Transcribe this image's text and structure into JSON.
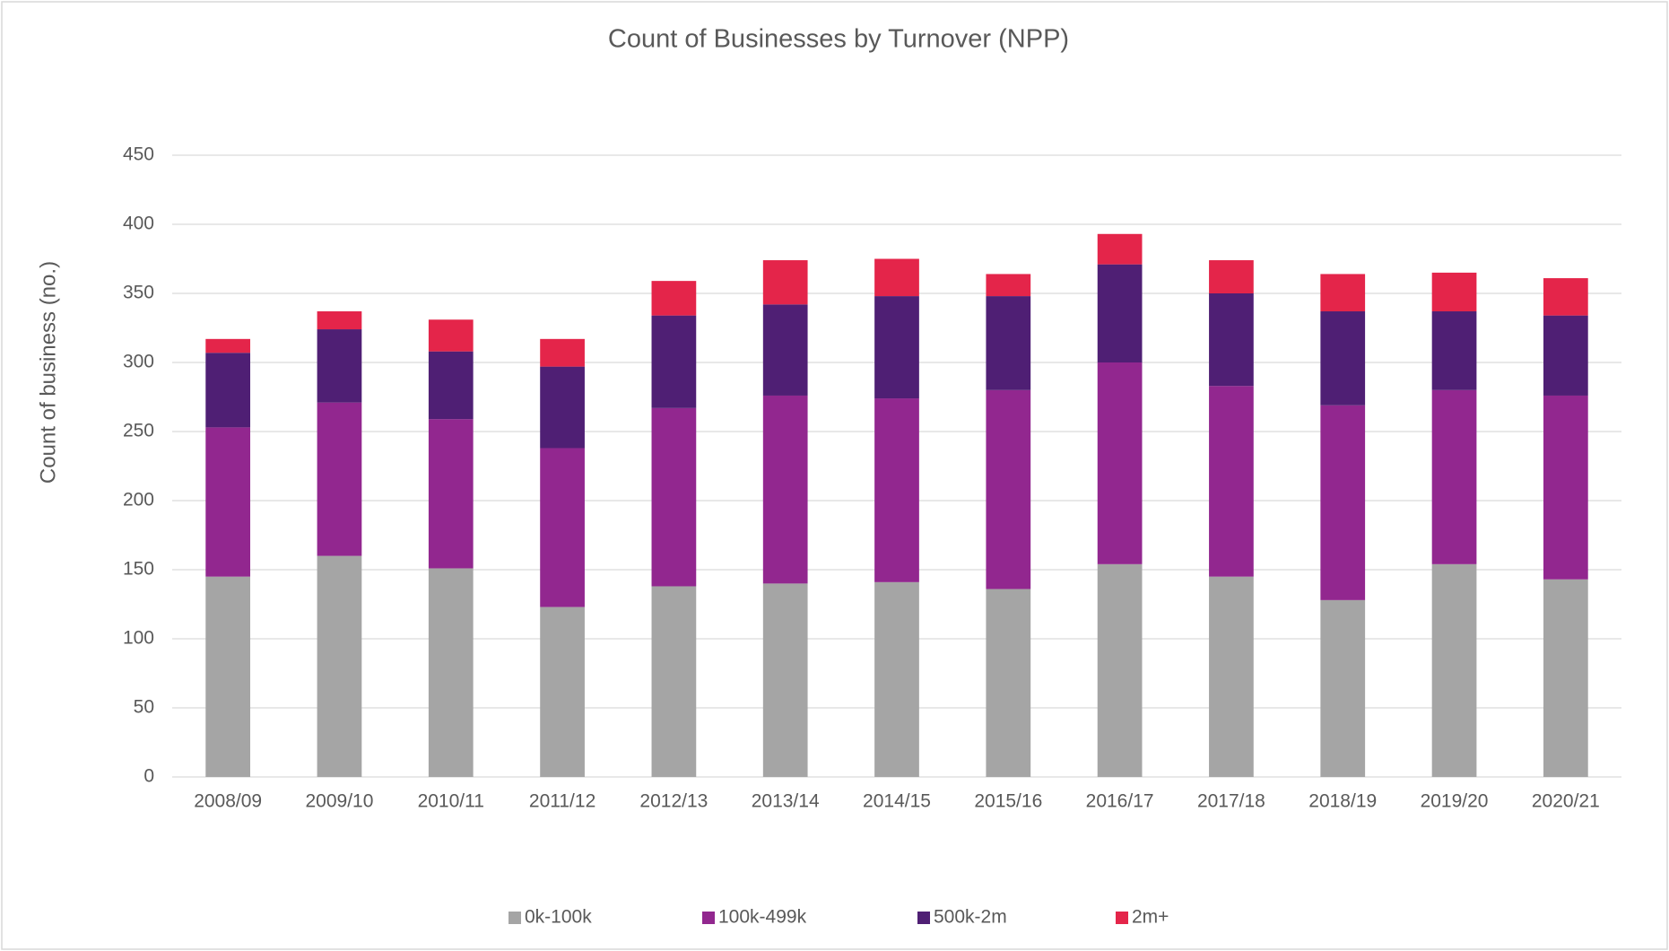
{
  "chart_data": {
    "type": "stacked_bar",
    "title": "Count of Businesses by Turnover (NPP)",
    "y_label": "Count of business (no.)",
    "categories": [
      "2008/09",
      "2009/10",
      "2010/11",
      "2011/12",
      "2012/13",
      "2013/14",
      "2014/15",
      "2015/16",
      "2016/17",
      "2017/18",
      "2018/19",
      "2019/20",
      "2020/21"
    ],
    "series": [
      {
        "name": "0k-100k",
        "color": "#a5a5a5",
        "values": [
          145,
          160,
          151,
          123,
          138,
          140,
          141,
          136,
          154,
          145,
          128,
          154,
          143
        ]
      },
      {
        "name": "100k-499k",
        "color": "#92278f",
        "values": [
          108,
          111,
          108,
          115,
          129,
          136,
          133,
          144,
          146,
          138,
          141,
          126,
          133
        ]
      },
      {
        "name": "500k-2m",
        "color": "#4f1f74",
        "values": [
          54,
          53,
          49,
          59,
          67,
          66,
          74,
          68,
          71,
          67,
          68,
          57,
          58
        ]
      },
      {
        "name": "2m+",
        "color": "#e4254a",
        "values": [
          10,
          13,
          23,
          20,
          25,
          32,
          27,
          16,
          22,
          24,
          27,
          28,
          27
        ]
      }
    ],
    "ylim": [
      0,
      450
    ],
    "yticks": [
      0,
      50,
      100,
      150,
      200,
      250,
      300,
      350,
      400,
      450
    ],
    "grid": true,
    "legend": "bottom"
  }
}
